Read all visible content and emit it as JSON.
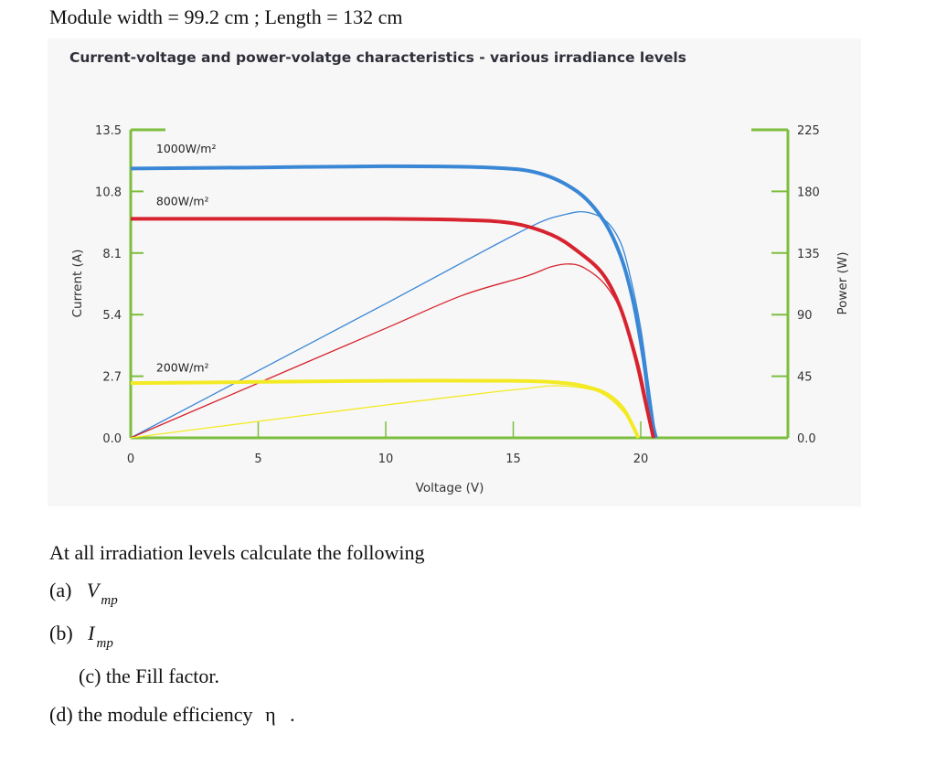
{
  "header": {
    "module_info": "Module width = 99.2 cm ; Length = 132 cm"
  },
  "colors": {
    "blue": "#3a87d6",
    "red": "#d7232f",
    "yellow": "#f3ea25",
    "frame_green": "#7dbe3e"
  },
  "chart_data": {
    "type": "line",
    "title": "Current-voltage and power-volatge characteristics - various irradiance levels",
    "xlabel": "Voltage (V)",
    "ylabel": "Current (A)",
    "y2label": "Power (W)",
    "xlim": [
      0,
      21
    ],
    "ylim": [
      0,
      13.5
    ],
    "y2lim": [
      0,
      225
    ],
    "x_ticks": [
      "0",
      "5",
      "10",
      "15",
      "20"
    ],
    "y_ticks": [
      "13.5",
      "10.8",
      "8.1",
      "5.4",
      "2.7",
      "0.0"
    ],
    "y2_ticks": [
      "225",
      "180",
      "135",
      "90",
      "45",
      "0.0"
    ],
    "series": [
      {
        "name": "1000W/m²",
        "color": "#3a87d6",
        "iv": [
          [
            0,
            11.8
          ],
          [
            5,
            11.85
          ],
          [
            10,
            11.9
          ],
          [
            14,
            11.85
          ],
          [
            16,
            11.6
          ],
          [
            17.5,
            10.8
          ],
          [
            18.5,
            9.6
          ],
          [
            19.2,
            8.0
          ],
          [
            19.7,
            6.0
          ],
          [
            20.1,
            3.5
          ],
          [
            20.4,
            1.0
          ],
          [
            20.6,
            0
          ]
        ],
        "pv": [
          [
            0,
            0
          ],
          [
            5,
            49
          ],
          [
            10,
            98
          ],
          [
            14,
            138
          ],
          [
            16,
            157
          ],
          [
            17,
            163
          ],
          [
            17.8,
            165
          ],
          [
            18.6,
            159
          ],
          [
            19.2,
            143
          ],
          [
            19.6,
            117
          ],
          [
            20.0,
            80
          ],
          [
            20.3,
            40
          ],
          [
            20.6,
            0
          ]
        ]
      },
      {
        "name": "800W/m²",
        "color": "#d7232f",
        "iv": [
          [
            0,
            9.6
          ],
          [
            5,
            9.6
          ],
          [
            10,
            9.6
          ],
          [
            13,
            9.55
          ],
          [
            15,
            9.4
          ],
          [
            16.5,
            8.9
          ],
          [
            17.5,
            8.2
          ],
          [
            18.5,
            7.2
          ],
          [
            19.2,
            5.7
          ],
          [
            19.8,
            3.5
          ],
          [
            20.2,
            1.5
          ],
          [
            20.5,
            0
          ]
        ],
        "pv": [
          [
            0,
            0
          ],
          [
            5,
            40
          ],
          [
            10,
            80
          ],
          [
            13,
            104
          ],
          [
            15.5,
            118
          ],
          [
            16.5,
            125
          ],
          [
            17.2,
            127
          ],
          [
            17.8,
            124
          ],
          [
            18.6,
            112
          ],
          [
            19.3,
            90
          ],
          [
            19.9,
            55
          ],
          [
            20.3,
            20
          ],
          [
            20.5,
            0
          ]
        ]
      },
      {
        "name": "200W/m²",
        "color": "#f3ea25",
        "iv": [
          [
            0,
            2.4
          ],
          [
            5,
            2.45
          ],
          [
            10,
            2.5
          ],
          [
            15,
            2.5
          ],
          [
            17,
            2.4
          ],
          [
            18,
            2.2
          ],
          [
            18.7,
            1.9
          ],
          [
            19.3,
            1.3
          ],
          [
            19.7,
            0.5
          ],
          [
            19.9,
            0
          ]
        ],
        "pv": [
          [
            0,
            0
          ],
          [
            5,
            12
          ],
          [
            10,
            24
          ],
          [
            14,
            33
          ],
          [
            15.5,
            36
          ],
          [
            16.5,
            38
          ],
          [
            17.5,
            37
          ],
          [
            18.3,
            34
          ],
          [
            18.9,
            27
          ],
          [
            19.4,
            17
          ],
          [
            19.8,
            6
          ],
          [
            19.9,
            0
          ]
        ]
      }
    ]
  },
  "questions": {
    "intro": "At all irradiation levels calculate the following",
    "a_label": "(a)",
    "a_var": "V",
    "a_sub": "mp",
    "b_label": "(b)",
    "b_var": "I",
    "b_sub": "mp",
    "c": "(c) the Fill factor.",
    "d_text": "(d) the module efficiency",
    "d_symbol": "η",
    "d_end": "."
  }
}
